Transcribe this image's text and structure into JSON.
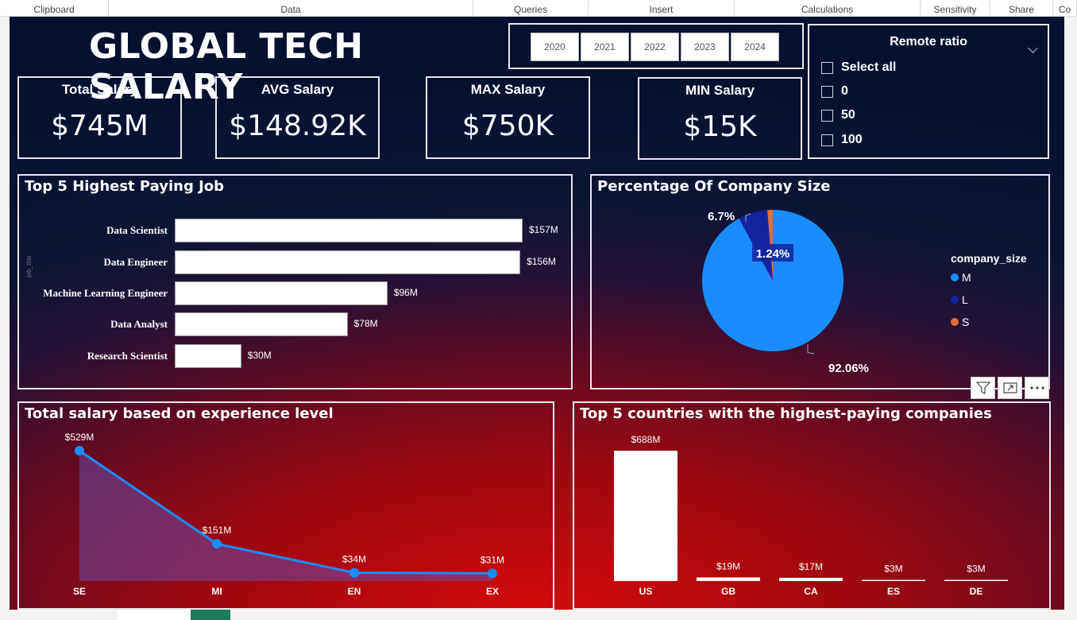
{
  "ribbon": [
    {
      "label": "Clipboard",
      "w": 137
    },
    {
      "label": "Data",
      "w": 459
    },
    {
      "label": "Queries",
      "w": 145
    },
    {
      "label": "Insert",
      "w": 184
    },
    {
      "label": "Calculations",
      "w": 234
    },
    {
      "label": "Sensitivity",
      "w": 88
    },
    {
      "label": "Share",
      "w": 79
    },
    {
      "label": "Co",
      "w": 30
    }
  ],
  "dashboard": {
    "title": "GLOBAL TECH SALARY"
  },
  "years": [
    "2020",
    "2021",
    "2022",
    "2023",
    "2024"
  ],
  "remote": {
    "title": "Remote ratio",
    "options": [
      "Select all",
      "0",
      "50",
      "100"
    ]
  },
  "kpis": [
    {
      "label": "Total Salary",
      "value": "$745M"
    },
    {
      "label": "AVG Salary",
      "value": "$148.92K"
    },
    {
      "label": "MAX Salary",
      "value": "$750K"
    },
    {
      "label": "MIN Salary",
      "value": "$15K"
    }
  ],
  "jobs_chart": {
    "title": "Top 5 Highest Paying Job",
    "axis_title": "job_title",
    "categories": [
      "Data Scientist",
      "Data Engineer",
      "Machine Learning Engineer",
      "Data Analyst",
      "Research Scientist"
    ],
    "values": [
      157,
      156,
      96,
      78,
      30
    ],
    "labels": [
      "$157M",
      "$156M",
      "$96M",
      "$78M",
      "$30M"
    ]
  },
  "pie_chart": {
    "title": "Percentage Of Company Size",
    "legend_title": "company_size",
    "slices": [
      {
        "name": "M",
        "value": 92.06,
        "label": "92.06%",
        "color": "#1a8cff"
      },
      {
        "name": "L",
        "value": 6.7,
        "label": "6.7%",
        "color": "#12239e"
      },
      {
        "name": "S",
        "value": 1.24,
        "label": "1.24%",
        "color": "#e66c37"
      }
    ]
  },
  "exp_chart": {
    "title": "Total salary based on experience level",
    "categories": [
      "SE",
      "MI",
      "EN",
      "EX"
    ],
    "values": [
      529,
      151,
      34,
      31
    ],
    "labels": [
      "$529M",
      "$151M",
      "$34M",
      "$31M"
    ],
    "color": "#1a8cff"
  },
  "country_chart": {
    "title": "Top 5 countries with the highest-paying companies",
    "categories": [
      "US",
      "GB",
      "CA",
      "ES",
      "DE"
    ],
    "values": [
      688,
      19,
      17,
      3,
      3
    ],
    "labels": [
      "$688M",
      "$19M",
      "$17M",
      "$3M",
      "$3M"
    ]
  },
  "chart_data": [
    {
      "type": "bar",
      "title": "Top 5 Highest Paying Job",
      "ylabel": "job_title",
      "categories": [
        "Data Scientist",
        "Data Engineer",
        "Machine Learning Engineer",
        "Data Analyst",
        "Research Scientist"
      ],
      "values": [
        157,
        156,
        96,
        78,
        30
      ],
      "unit": "$M",
      "orientation": "horizontal"
    },
    {
      "type": "pie",
      "title": "Percentage Of Company Size",
      "legend_title": "company_size",
      "categories": [
        "M",
        "L",
        "S"
      ],
      "values": [
        92.06,
        6.7,
        1.24
      ],
      "legend": "right"
    },
    {
      "type": "area",
      "title": "Total salary based on experience level",
      "categories": [
        "SE",
        "MI",
        "EN",
        "EX"
      ],
      "values": [
        529,
        151,
        34,
        31
      ],
      "unit": "$M"
    },
    {
      "type": "bar",
      "title": "Top 5 countries with the highest-paying companies",
      "categories": [
        "US",
        "GB",
        "CA",
        "ES",
        "DE"
      ],
      "values": [
        688,
        19,
        17,
        3,
        3
      ],
      "unit": "$M"
    }
  ]
}
